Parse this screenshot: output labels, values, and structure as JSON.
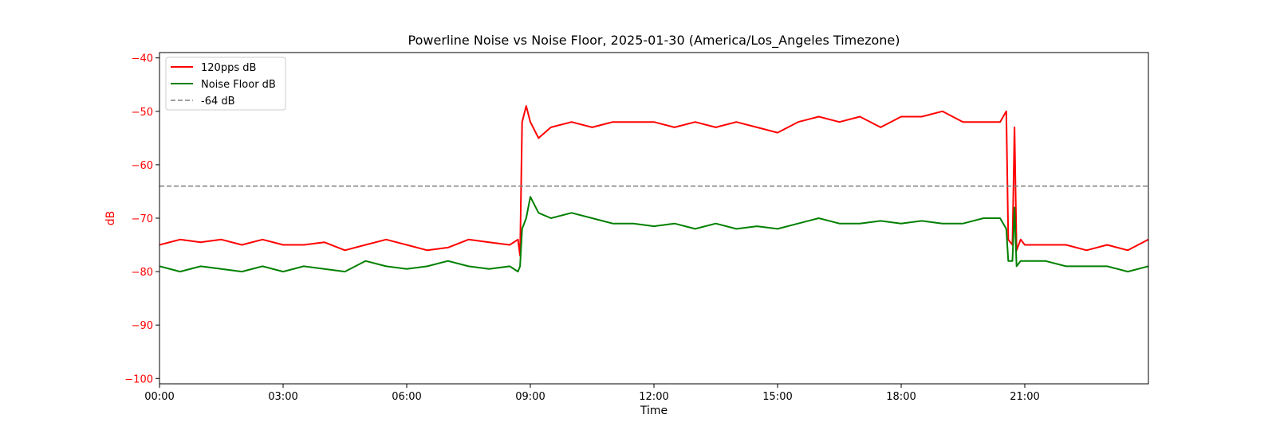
{
  "chart_data": {
    "type": "line",
    "title": "Powerline Noise vs Noise Floor, 2025-01-30 (America/Los_Angeles Timezone)",
    "xlabel": "Time",
    "ylabel": "dB",
    "x_unit": "hours",
    "xlim": [
      0,
      24
    ],
    "ylim": [
      -101,
      -39
    ],
    "xticks": [
      0,
      3,
      6,
      9,
      12,
      15,
      18,
      21
    ],
    "xtick_labels": [
      "00:00",
      "03:00",
      "06:00",
      "09:00",
      "12:00",
      "15:00",
      "18:00",
      "21:00"
    ],
    "yticks": [
      -100,
      -90,
      -80,
      -70,
      -60,
      -50,
      -40
    ],
    "ytick_labels": [
      "−100",
      "−90",
      "−80",
      "−70",
      "−60",
      "−50",
      "−40"
    ],
    "grid": false,
    "legend": "top-left",
    "series": [
      {
        "name": "120pps dB",
        "color": "#ff0000",
        "style": "solid",
        "x": [
          0,
          0.5,
          1,
          1.5,
          2,
          2.5,
          3,
          3.5,
          4,
          4.5,
          5,
          5.5,
          6,
          6.5,
          7,
          7.5,
          8,
          8.5,
          8.7,
          8.75,
          8.8,
          8.9,
          9,
          9.2,
          9.5,
          10,
          10.5,
          11,
          11.5,
          12,
          12.5,
          13,
          13.5,
          14,
          14.5,
          15,
          15.5,
          16,
          16.5,
          17,
          17.5,
          18,
          18.5,
          19,
          19.5,
          20,
          20.4,
          20.55,
          20.6,
          20.7,
          20.75,
          20.8,
          20.9,
          21,
          21.5,
          22,
          22.5,
          23,
          23.5,
          24
        ],
        "y": [
          -75,
          -74,
          -74.5,
          -74,
          -75,
          -74,
          -75,
          -75,
          -74.5,
          -76,
          -75,
          -74,
          -75,
          -76,
          -75.5,
          -74,
          -74.5,
          -75,
          -74,
          -77,
          -52,
          -49,
          -52,
          -55,
          -53,
          -52,
          -53,
          -52,
          -52,
          -52,
          -53,
          -52,
          -53,
          -52,
          -53,
          -54,
          -52,
          -51,
          -52,
          -51,
          -53,
          -51,
          -51,
          -50,
          -52,
          -52,
          -52,
          -50,
          -74,
          -75,
          -53,
          -76,
          -74,
          -75,
          -75,
          -75,
          -76,
          -75,
          -76,
          -74
        ]
      },
      {
        "name": "Noise Floor dB",
        "color": "#008000",
        "style": "solid",
        "x": [
          0,
          0.5,
          1,
          1.5,
          2,
          2.5,
          3,
          3.5,
          4,
          4.5,
          5,
          5.5,
          6,
          6.5,
          7,
          7.5,
          8,
          8.5,
          8.7,
          8.75,
          8.8,
          8.9,
          9,
          9.2,
          9.5,
          10,
          10.5,
          11,
          11.5,
          12,
          12.5,
          13,
          13.5,
          14,
          14.5,
          15,
          15.5,
          16,
          16.5,
          17,
          17.5,
          18,
          18.5,
          19,
          19.5,
          20,
          20.4,
          20.55,
          20.6,
          20.7,
          20.75,
          20.8,
          20.9,
          21,
          21.5,
          22,
          22.5,
          23,
          23.5,
          24
        ],
        "y": [
          -79,
          -80,
          -79,
          -79.5,
          -80,
          -79,
          -80,
          -79,
          -79.5,
          -80,
          -78,
          -79,
          -79.5,
          -79,
          -78,
          -79,
          -79.5,
          -79,
          -80,
          -79,
          -72,
          -70,
          -66,
          -69,
          -70,
          -69,
          -70,
          -71,
          -71,
          -71.5,
          -71,
          -72,
          -71,
          -72,
          -71.5,
          -72,
          -71,
          -70,
          -71,
          -71,
          -70.5,
          -71,
          -70.5,
          -71,
          -71,
          -70,
          -70,
          -72,
          -78,
          -78,
          -68,
          -79,
          -78,
          -78,
          -78,
          -79,
          -79,
          -79,
          -80,
          -79
        ]
      },
      {
        "name": "-64 dB",
        "color": "#808080",
        "style": "dashed",
        "x": [
          0,
          24
        ],
        "y": [
          -64,
          -64
        ]
      }
    ]
  }
}
